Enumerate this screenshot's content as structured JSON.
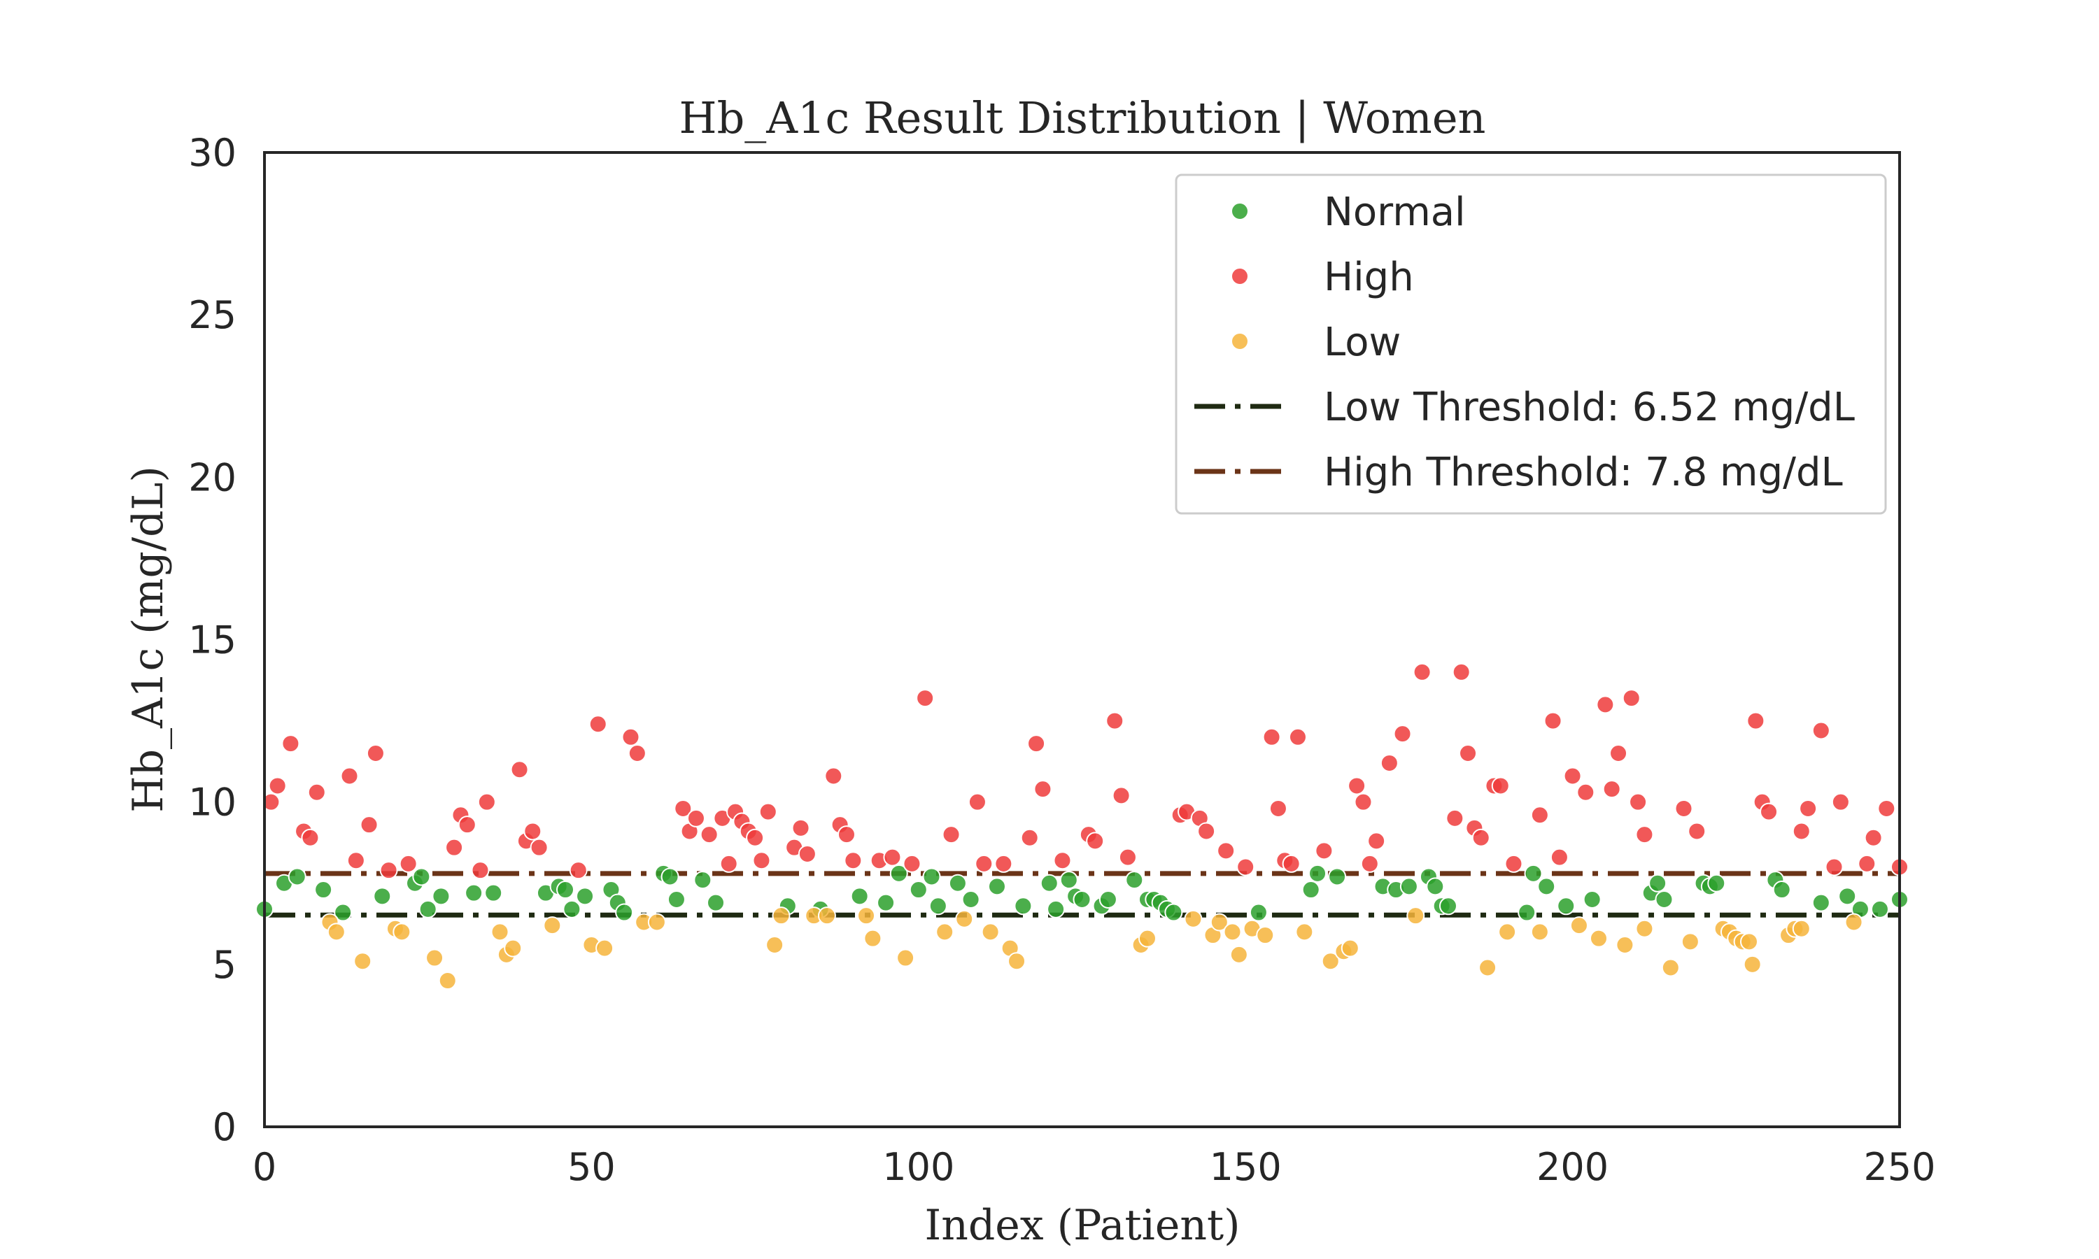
{
  "chart_data": {
    "type": "scatter",
    "title": "Hb_A1c Result Distribution | Women",
    "xlabel": "Index (Patient)",
    "ylabel": "Hb_A1c (mg/dL)",
    "xlim": [
      0,
      250
    ],
    "ylim": [
      0,
      30
    ],
    "x_ticks": [
      0,
      50,
      100,
      150,
      200,
      250
    ],
    "y_ticks": [
      0,
      5,
      10,
      15,
      20,
      25,
      30
    ],
    "grid": false,
    "legend_position": "top-right",
    "series": [
      {
        "name": "Normal",
        "color": "#2ca02c",
        "points": [
          [
            0,
            6.7
          ],
          [
            3,
            7.5
          ],
          [
            5,
            7.7
          ],
          [
            9,
            7.3
          ],
          [
            12,
            6.6
          ],
          [
            18,
            7.1
          ],
          [
            23,
            7.5
          ],
          [
            24,
            7.7
          ],
          [
            25,
            6.7
          ],
          [
            27,
            7.1
          ],
          [
            32,
            7.2
          ],
          [
            35,
            7.2
          ],
          [
            43,
            7.2
          ],
          [
            45,
            7.4
          ],
          [
            46,
            7.3
          ],
          [
            47,
            6.7
          ],
          [
            49,
            7.1
          ],
          [
            53,
            7.3
          ],
          [
            54,
            6.9
          ],
          [
            55,
            6.6
          ],
          [
            61,
            7.8
          ],
          [
            62,
            7.7
          ],
          [
            63,
            7.0
          ],
          [
            67,
            7.6
          ],
          [
            69,
            6.9
          ],
          [
            80,
            6.8
          ],
          [
            85,
            6.7
          ],
          [
            91,
            7.1
          ],
          [
            95,
            6.9
          ],
          [
            97,
            7.8
          ],
          [
            100,
            7.3
          ],
          [
            102,
            7.7
          ],
          [
            103,
            6.8
          ],
          [
            106,
            7.5
          ],
          [
            108,
            7.0
          ],
          [
            112,
            7.4
          ],
          [
            116,
            6.8
          ],
          [
            120,
            7.5
          ],
          [
            121,
            6.7
          ],
          [
            123,
            7.6
          ],
          [
            124,
            7.1
          ],
          [
            125,
            7.0
          ],
          [
            128,
            6.8
          ],
          [
            129,
            7.0
          ],
          [
            133,
            7.6
          ],
          [
            135,
            7.0
          ],
          [
            136,
            7.0
          ],
          [
            137,
            6.9
          ],
          [
            138,
            6.7
          ],
          [
            139,
            6.6
          ],
          [
            152,
            6.6
          ],
          [
            160,
            7.3
          ],
          [
            161,
            7.8
          ],
          [
            164,
            7.7
          ],
          [
            171,
            7.4
          ],
          [
            173,
            7.3
          ],
          [
            175,
            7.4
          ],
          [
            178,
            7.7
          ],
          [
            179,
            7.4
          ],
          [
            180,
            6.8
          ],
          [
            181,
            6.8
          ],
          [
            193,
            6.6
          ],
          [
            194,
            7.8
          ],
          [
            196,
            7.4
          ],
          [
            199,
            6.8
          ],
          [
            203,
            7.0
          ],
          [
            212,
            7.2
          ],
          [
            213,
            7.5
          ],
          [
            214,
            7.0
          ],
          [
            220,
            7.5
          ],
          [
            221,
            7.4
          ],
          [
            222,
            7.5
          ],
          [
            231,
            7.6
          ],
          [
            232,
            7.3
          ],
          [
            238,
            6.9
          ],
          [
            242,
            7.1
          ],
          [
            244,
            6.7
          ],
          [
            247,
            6.7
          ],
          [
            250,
            7.0
          ]
        ]
      },
      {
        "name": "High",
        "color": "#ef3b3b",
        "points": [
          [
            1,
            10.0
          ],
          [
            2,
            10.5
          ],
          [
            4,
            11.8
          ],
          [
            6,
            9.1
          ],
          [
            7,
            8.9
          ],
          [
            8,
            10.3
          ],
          [
            13,
            10.8
          ],
          [
            14,
            8.2
          ],
          [
            16,
            9.3
          ],
          [
            17,
            11.5
          ],
          [
            19,
            7.9
          ],
          [
            22,
            8.1
          ],
          [
            29,
            8.6
          ],
          [
            30,
            9.6
          ],
          [
            31,
            9.3
          ],
          [
            33,
            7.9
          ],
          [
            34,
            10.0
          ],
          [
            39,
            11.0
          ],
          [
            40,
            8.8
          ],
          [
            41,
            9.1
          ],
          [
            42,
            8.6
          ],
          [
            48,
            7.9
          ],
          [
            51,
            12.4
          ],
          [
            56,
            12.0
          ],
          [
            57,
            11.5
          ],
          [
            64,
            9.8
          ],
          [
            65,
            9.1
          ],
          [
            66,
            9.5
          ],
          [
            68,
            9.0
          ],
          [
            70,
            9.5
          ],
          [
            71,
            8.1
          ],
          [
            72,
            9.7
          ],
          [
            73,
            9.4
          ],
          [
            74,
            9.1
          ],
          [
            75,
            8.9
          ],
          [
            76,
            8.2
          ],
          [
            77,
            9.7
          ],
          [
            81,
            8.6
          ],
          [
            82,
            9.2
          ],
          [
            83,
            8.4
          ],
          [
            87,
            10.8
          ],
          [
            88,
            9.3
          ],
          [
            89,
            9.0
          ],
          [
            90,
            8.2
          ],
          [
            94,
            8.2
          ],
          [
            96,
            8.3
          ],
          [
            99,
            8.1
          ],
          [
            101,
            13.2
          ],
          [
            105,
            9.0
          ],
          [
            109,
            10.0
          ],
          [
            110,
            8.1
          ],
          [
            113,
            8.1
          ],
          [
            117,
            8.9
          ],
          [
            118,
            11.8
          ],
          [
            119,
            10.4
          ],
          [
            122,
            8.2
          ],
          [
            126,
            9.0
          ],
          [
            127,
            8.8
          ],
          [
            130,
            12.5
          ],
          [
            131,
            10.2
          ],
          [
            132,
            8.3
          ],
          [
            140,
            9.6
          ],
          [
            141,
            9.7
          ],
          [
            143,
            9.5
          ],
          [
            144,
            9.1
          ],
          [
            147,
            8.5
          ],
          [
            150,
            8.0
          ],
          [
            154,
            12.0
          ],
          [
            155,
            9.8
          ],
          [
            156,
            8.2
          ],
          [
            157,
            8.1
          ],
          [
            158,
            12.0
          ],
          [
            162,
            8.5
          ],
          [
            167,
            10.5
          ],
          [
            168,
            10.0
          ],
          [
            169,
            8.1
          ],
          [
            170,
            8.8
          ],
          [
            172,
            11.2
          ],
          [
            174,
            12.1
          ],
          [
            177,
            14.0
          ],
          [
            182,
            9.5
          ],
          [
            183,
            14.0
          ],
          [
            184,
            11.5
          ],
          [
            185,
            9.2
          ],
          [
            186,
            8.9
          ],
          [
            188,
            10.5
          ],
          [
            189,
            10.5
          ],
          [
            191,
            8.1
          ],
          [
            195,
            9.6
          ],
          [
            197,
            12.5
          ],
          [
            198,
            8.3
          ],
          [
            200,
            10.8
          ],
          [
            202,
            10.3
          ],
          [
            205,
            13.0
          ],
          [
            206,
            10.4
          ],
          [
            207,
            11.5
          ],
          [
            209,
            13.2
          ],
          [
            210,
            10.0
          ],
          [
            211,
            9.0
          ],
          [
            217,
            9.8
          ],
          [
            219,
            9.1
          ],
          [
            228,
            12.5
          ],
          [
            229,
            10.0
          ],
          [
            230,
            9.7
          ],
          [
            235,
            9.1
          ],
          [
            236,
            9.8
          ],
          [
            238,
            12.2
          ],
          [
            240,
            8.0
          ],
          [
            241,
            10.0
          ],
          [
            245,
            8.1
          ],
          [
            246,
            8.9
          ],
          [
            248,
            9.8
          ],
          [
            250,
            8.0
          ]
        ]
      },
      {
        "name": "Low",
        "color": "#f6b43b",
        "points": [
          [
            10,
            6.3
          ],
          [
            11,
            6.0
          ],
          [
            15,
            5.1
          ],
          [
            20,
            6.1
          ],
          [
            21,
            6.0
          ],
          [
            26,
            5.2
          ],
          [
            28,
            4.5
          ],
          [
            36,
            6.0
          ],
          [
            37,
            5.3
          ],
          [
            38,
            5.5
          ],
          [
            44,
            6.2
          ],
          [
            50,
            5.6
          ],
          [
            52,
            5.5
          ],
          [
            58,
            6.3
          ],
          [
            60,
            6.3
          ],
          [
            78,
            5.6
          ],
          [
            79,
            6.5
          ],
          [
            84,
            6.5
          ],
          [
            86,
            6.5
          ],
          [
            92,
            6.5
          ],
          [
            93,
            5.8
          ],
          [
            98,
            5.2
          ],
          [
            104,
            6.0
          ],
          [
            107,
            6.4
          ],
          [
            111,
            6.0
          ],
          [
            114,
            5.5
          ],
          [
            115,
            5.1
          ],
          [
            134,
            5.6
          ],
          [
            135,
            5.8
          ],
          [
            142,
            6.4
          ],
          [
            145,
            5.9
          ],
          [
            146,
            6.3
          ],
          [
            148,
            6.0
          ],
          [
            149,
            5.3
          ],
          [
            151,
            6.1
          ],
          [
            153,
            5.9
          ],
          [
            159,
            6.0
          ],
          [
            163,
            5.1
          ],
          [
            165,
            5.4
          ],
          [
            166,
            5.5
          ],
          [
            176,
            6.5
          ],
          [
            187,
            4.9
          ],
          [
            190,
            6.0
          ],
          [
            195,
            6.0
          ],
          [
            201,
            6.2
          ],
          [
            204,
            5.8
          ],
          [
            208,
            5.6
          ],
          [
            211,
            6.1
          ],
          [
            215,
            4.9
          ],
          [
            218,
            5.7
          ],
          [
            223,
            6.1
          ],
          [
            224,
            6.0
          ],
          [
            225,
            5.8
          ],
          [
            226,
            5.7
          ],
          [
            227,
            5.7
          ],
          [
            227.5,
            5.0
          ],
          [
            233,
            5.9
          ],
          [
            234,
            6.1
          ],
          [
            235,
            6.1
          ],
          [
            243,
            6.3
          ]
        ]
      }
    ],
    "reference_lines": [
      {
        "label": "Low Threshold: 6.52 mg/dL",
        "y": 6.52,
        "color": "#1f2a12",
        "style": "dash-dot"
      },
      {
        "label": "High Threshold: 7.8 mg/dL",
        "y": 7.8,
        "color": "#6b3418",
        "style": "dash-dot"
      }
    ]
  }
}
